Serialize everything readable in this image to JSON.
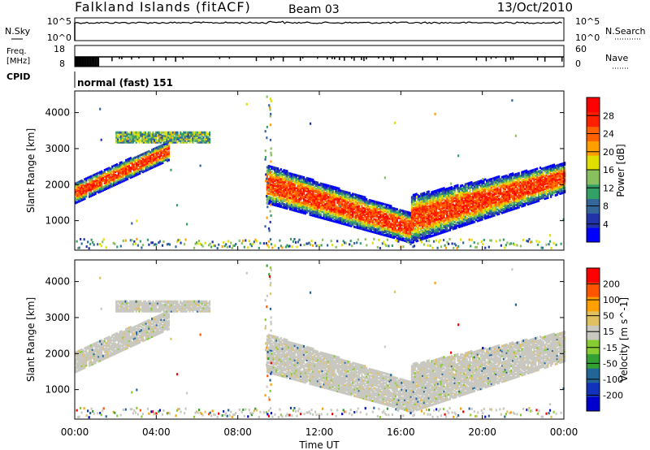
{
  "header": {
    "station": "Falkland Islands (fitACF)",
    "beam": "Beam 03",
    "date": "13/Oct/2010"
  },
  "panels": {
    "nsky": {
      "label": "N.Sky",
      "ticks": [
        "10^5",
        "10^0"
      ]
    },
    "nsearch": {
      "label": "N.Search",
      "ticks": [
        "10^5",
        "10^0"
      ]
    },
    "freq": {
      "label_line1": "Freq.",
      "label_line2": "[MHz]",
      "ticks": [
        "18",
        "8"
      ]
    },
    "nave": {
      "label": "Nave",
      "ticks": [
        "60",
        "0"
      ]
    },
    "cpid": {
      "label": "CPID",
      "value": "normal (fast) 151"
    }
  },
  "colors": {
    "power": [
      "#0000ff",
      "#2233aa",
      "#336699",
      "#33a066",
      "#88c060",
      "#e0e000",
      "#ffa000",
      "#ff6000",
      "#ff2000",
      "#ff0000"
    ],
    "velocity": [
      "#ff0000",
      "#ff5500",
      "#ffa000",
      "#e0c060",
      "#c8c8c0",
      "#88cc33",
      "#33a033",
      "#226699",
      "#1133bb",
      "#0000cc"
    ]
  },
  "chart_data": [
    {
      "type": "heatmap",
      "title": "Power",
      "ylabel": "Slant Range [km]",
      "yticks": [
        1000,
        2000,
        3000,
        4000
      ],
      "ylim": [
        180,
        4600
      ],
      "colorbar_label": "Power [dB]",
      "colorbar_ticks": [
        "4",
        "8",
        "12",
        "16",
        "20",
        "24",
        "28"
      ],
      "colorbar_range": [
        0,
        32
      ],
      "bands": [
        {
          "t0": 0.0,
          "t1": 4.6,
          "r0": [
            1700,
            1850
          ],
          "r1": [
            2900,
            3000
          ],
          "value": 26
        },
        {
          "t0": 2.0,
          "t1": 6.6,
          "r0": [
            3250,
            3400
          ],
          "r1": [
            3250,
            3400
          ],
          "value": 12
        },
        {
          "t0": 9.4,
          "t1": 16.5,
          "r0": [
            1700,
            2350
          ],
          "r1": [
            600,
            1000
          ],
          "value": 26
        },
        {
          "t0": 16.5,
          "t1": 24.0,
          "r0": [
            600,
            1500
          ],
          "r1": [
            2000,
            2400
          ],
          "value": 26
        }
      ]
    },
    {
      "type": "heatmap",
      "title": "Velocity",
      "ylabel": "Slant Range [km]",
      "yticks": [
        1000,
        2000,
        3000,
        4000
      ],
      "ylim": [
        180,
        4600
      ],
      "colorbar_label": "Velocity [m s^-1]",
      "colorbar_ticks": [
        "200",
        "100",
        "50",
        "15",
        "-15",
        "-50",
        "-100",
        "-200"
      ]
    }
  ],
  "xaxis": {
    "label": "Time UT",
    "ticks": [
      "00:00",
      "04:00",
      "08:00",
      "12:00",
      "16:00",
      "20:00",
      "00:00"
    ],
    "xlim": [
      0,
      24
    ]
  }
}
